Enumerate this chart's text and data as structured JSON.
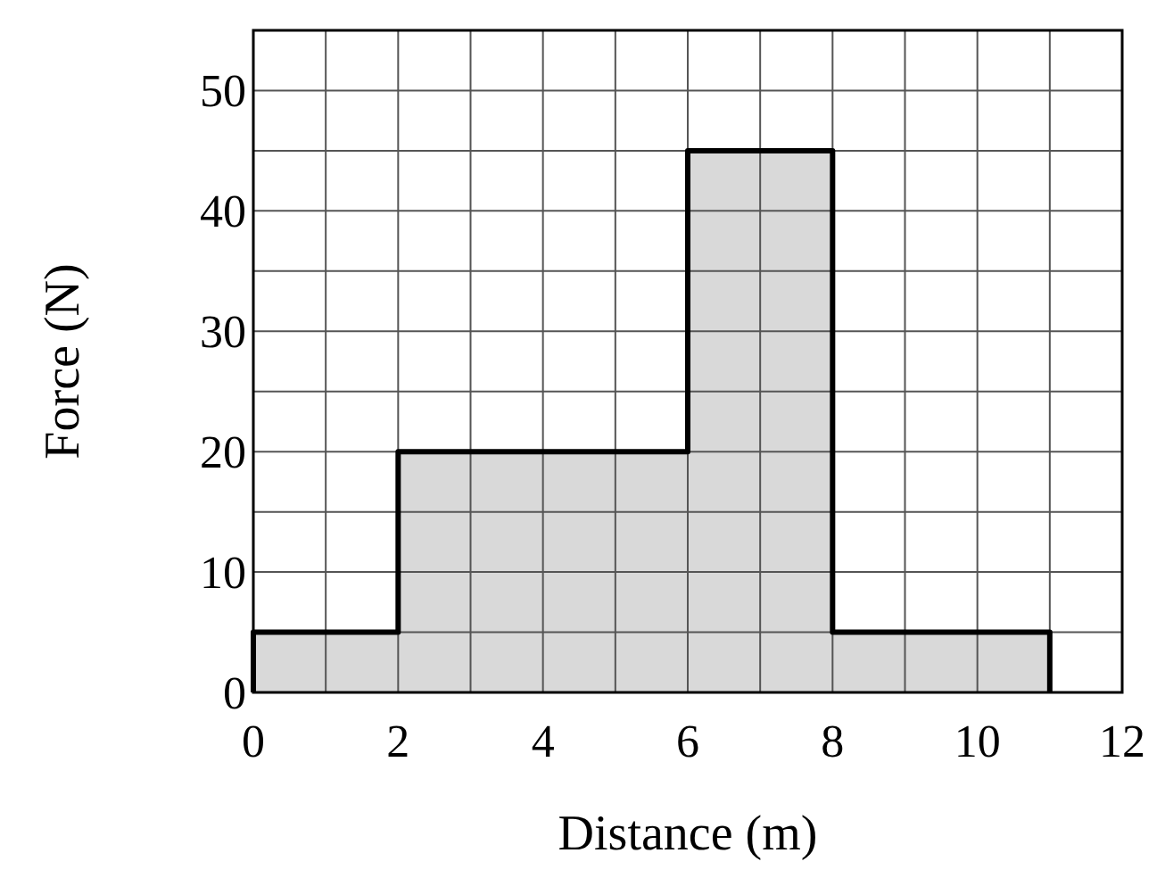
{
  "chart_data": {
    "type": "area",
    "xlabel": "Distance (m)",
    "ylabel": "Force (N)",
    "xlim": [
      0,
      12
    ],
    "ylim": [
      0,
      55
    ],
    "xticks": [
      0,
      {
        "value": 1,
        "label": null
      },
      2,
      {
        "value": 3,
        "label": null
      },
      4,
      {
        "value": 5,
        "label": null
      },
      6,
      {
        "value": 7,
        "label": null
      },
      8,
      {
        "value": 9,
        "label": null
      },
      10,
      {
        "value": 11,
        "label": null
      },
      12
    ],
    "yticks": [
      0,
      {
        "value": 5,
        "label": null
      },
      10,
      {
        "value": 15,
        "label": null
      },
      20,
      {
        "value": 25,
        "label": null
      },
      30,
      {
        "value": 35,
        "label": null
      },
      40,
      {
        "value": 45,
        "label": null
      },
      50,
      {
        "value": 55,
        "label": null
      }
    ],
    "grid": true,
    "series": [
      {
        "color": "#d9d9d9",
        "x": [
          0,
          0,
          2,
          2,
          6,
          6,
          8,
          8,
          11,
          11
        ],
        "values": [
          0,
          5,
          5,
          20,
          20,
          45,
          45,
          5,
          5,
          0
        ]
      }
    ]
  }
}
